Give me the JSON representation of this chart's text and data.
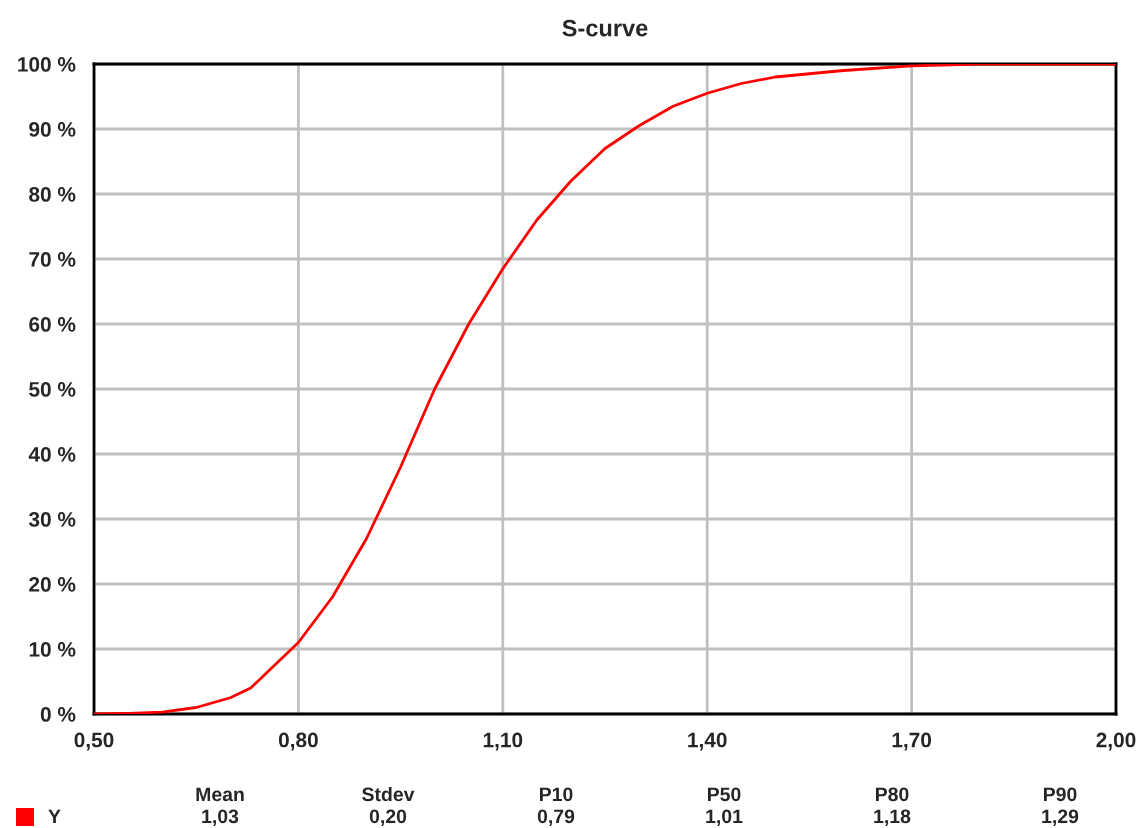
{
  "chart_data": {
    "type": "line",
    "title": "S-curve",
    "x": [
      0.5,
      0.55,
      0.6,
      0.65,
      0.7,
      0.73,
      0.75,
      0.8,
      0.85,
      0.9,
      0.95,
      1.0,
      1.05,
      1.1,
      1.15,
      1.2,
      1.25,
      1.3,
      1.35,
      1.4,
      1.45,
      1.5,
      1.6,
      1.7,
      1.8,
      2.0
    ],
    "series": [
      {
        "name": "Y",
        "color": "#ff0000",
        "values": [
          0,
          0.1,
          0.3,
          1,
          2.5,
          4,
          6,
          11,
          18,
          27,
          38,
          50,
          60,
          68.5,
          76,
          82,
          87,
          90.5,
          93.5,
          95.5,
          97,
          98,
          99,
          99.7,
          100,
          100
        ]
      }
    ],
    "xlim": [
      0.5,
      2.0
    ],
    "xticks": [
      {
        "value": 0.5,
        "label": "0,50"
      },
      {
        "value": 0.8,
        "label": "0,80"
      },
      {
        "value": 1.1,
        "label": "1,10"
      },
      {
        "value": 1.4,
        "label": "1,40"
      },
      {
        "value": 1.7,
        "label": "1,70"
      },
      {
        "value": 2.0,
        "label": "2,00"
      }
    ],
    "ylim": [
      0,
      100
    ],
    "yticks": [
      {
        "value": 0,
        "label": "0 %"
      },
      {
        "value": 10,
        "label": "10 %"
      },
      {
        "value": 20,
        "label": "20 %"
      },
      {
        "value": 30,
        "label": "30 %"
      },
      {
        "value": 40,
        "label": "40 %"
      },
      {
        "value": 50,
        "label": "50 %"
      },
      {
        "value": 60,
        "label": "60 %"
      },
      {
        "value": 70,
        "label": "70 %"
      },
      {
        "value": 80,
        "label": "80 %"
      },
      {
        "value": 90,
        "label": "90 %"
      },
      {
        "value": 100,
        "label": "100 %"
      }
    ],
    "grid": true,
    "legend": "bottom",
    "marker": "none",
    "line_style": "solid",
    "annotations": [
      "Mean",
      "1,03",
      "Stdev",
      "0,20",
      "P10",
      "0,79",
      "P50",
      "1,01",
      "P80",
      "1,18",
      "P90",
      "1,29"
    ]
  }
}
